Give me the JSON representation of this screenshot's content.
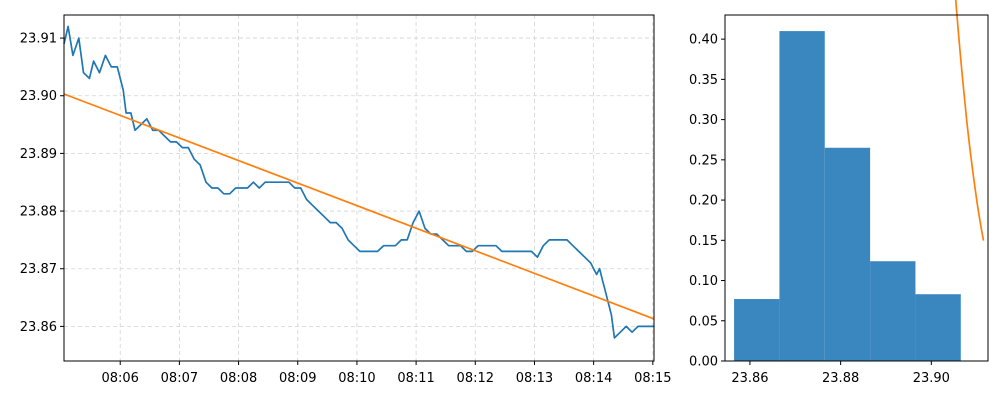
{
  "chart_data": [
    {
      "type": "line",
      "title": "",
      "xlabel": "",
      "ylabel": "",
      "grid": true,
      "x_ticks": [
        "08:06",
        "08:07",
        "08:08",
        "08:09",
        "08:10",
        "08:11",
        "08:12",
        "08:13",
        "08:14",
        "08:15"
      ],
      "x_tick_minutes": [
        6,
        7,
        8,
        9,
        10,
        11,
        12,
        13,
        14,
        15
      ],
      "xlim_minutes": [
        5.05,
        15.02
      ],
      "y_ticks": [
        23.86,
        23.87,
        23.88,
        23.89,
        23.9,
        23.91
      ],
      "ylim": [
        23.854,
        23.914
      ],
      "series": [
        {
          "kind": "price",
          "color": "#1f77b4",
          "points": [
            [
              5.05,
              23.909
            ],
            [
              5.12,
              23.912
            ],
            [
              5.2,
              23.907
            ],
            [
              5.3,
              23.91
            ],
            [
              5.38,
              23.904
            ],
            [
              5.48,
              23.903
            ],
            [
              5.55,
              23.906
            ],
            [
              5.65,
              23.904
            ],
            [
              5.75,
              23.907
            ],
            [
              5.85,
              23.905
            ],
            [
              5.95,
              23.905
            ],
            [
              6.05,
              23.901
            ],
            [
              6.1,
              23.897
            ],
            [
              6.18,
              23.897
            ],
            [
              6.25,
              23.894
            ],
            [
              6.35,
              23.895
            ],
            [
              6.45,
              23.896
            ],
            [
              6.55,
              23.894
            ],
            [
              6.65,
              23.894
            ],
            [
              6.75,
              23.893
            ],
            [
              6.85,
              23.892
            ],
            [
              6.95,
              23.892
            ],
            [
              7.05,
              23.891
            ],
            [
              7.15,
              23.891
            ],
            [
              7.25,
              23.889
            ],
            [
              7.35,
              23.888
            ],
            [
              7.45,
              23.885
            ],
            [
              7.55,
              23.884
            ],
            [
              7.65,
              23.884
            ],
            [
              7.75,
              23.883
            ],
            [
              7.85,
              23.883
            ],
            [
              7.95,
              23.884
            ],
            [
              8.05,
              23.884
            ],
            [
              8.15,
              23.884
            ],
            [
              8.25,
              23.885
            ],
            [
              8.35,
              23.884
            ],
            [
              8.45,
              23.885
            ],
            [
              8.55,
              23.885
            ],
            [
              8.65,
              23.885
            ],
            [
              8.75,
              23.885
            ],
            [
              8.85,
              23.885
            ],
            [
              8.95,
              23.884
            ],
            [
              9.05,
              23.884
            ],
            [
              9.15,
              23.882
            ],
            [
              9.25,
              23.881
            ],
            [
              9.35,
              23.88
            ],
            [
              9.45,
              23.879
            ],
            [
              9.55,
              23.878
            ],
            [
              9.65,
              23.878
            ],
            [
              9.75,
              23.877
            ],
            [
              9.85,
              23.875
            ],
            [
              9.95,
              23.874
            ],
            [
              10.05,
              23.873
            ],
            [
              10.15,
              23.873
            ],
            [
              10.25,
              23.873
            ],
            [
              10.35,
              23.873
            ],
            [
              10.45,
              23.874
            ],
            [
              10.55,
              23.874
            ],
            [
              10.65,
              23.874
            ],
            [
              10.75,
              23.875
            ],
            [
              10.85,
              23.875
            ],
            [
              10.95,
              23.878
            ],
            [
              11.05,
              23.88
            ],
            [
              11.15,
              23.877
            ],
            [
              11.25,
              23.876
            ],
            [
              11.35,
              23.876
            ],
            [
              11.45,
              23.875
            ],
            [
              11.55,
              23.874
            ],
            [
              11.65,
              23.874
            ],
            [
              11.75,
              23.874
            ],
            [
              11.85,
              23.873
            ],
            [
              11.95,
              23.873
            ],
            [
              12.05,
              23.874
            ],
            [
              12.15,
              23.874
            ],
            [
              12.25,
              23.874
            ],
            [
              12.35,
              23.874
            ],
            [
              12.45,
              23.873
            ],
            [
              12.55,
              23.873
            ],
            [
              12.65,
              23.873
            ],
            [
              12.75,
              23.873
            ],
            [
              12.85,
              23.873
            ],
            [
              12.95,
              23.873
            ],
            [
              13.05,
              23.872
            ],
            [
              13.15,
              23.874
            ],
            [
              13.25,
              23.875
            ],
            [
              13.35,
              23.875
            ],
            [
              13.45,
              23.875
            ],
            [
              13.55,
              23.875
            ],
            [
              13.65,
              23.874
            ],
            [
              13.75,
              23.873
            ],
            [
              13.85,
              23.872
            ],
            [
              13.95,
              23.871
            ],
            [
              14.05,
              23.869
            ],
            [
              14.1,
              23.87
            ],
            [
              14.15,
              23.868
            ],
            [
              14.2,
              23.866
            ],
            [
              14.3,
              23.862
            ],
            [
              14.35,
              23.858
            ],
            [
              14.45,
              23.859
            ],
            [
              14.55,
              23.86
            ],
            [
              14.65,
              23.859
            ],
            [
              14.75,
              23.86
            ],
            [
              14.85,
              23.86
            ],
            [
              14.95,
              23.86
            ],
            [
              15.02,
              23.86
            ]
          ]
        },
        {
          "kind": "trend",
          "color": "#ff7f0e",
          "points": [
            [
              5.05,
              23.9003
            ],
            [
              15.02,
              23.8613
            ]
          ]
        }
      ]
    },
    {
      "type": "bar",
      "title": "",
      "xlabel": "",
      "ylabel": "",
      "grid": false,
      "x_ticks": [
        "23.86",
        "23.88",
        "23.90"
      ],
      "x_tick_values": [
        23.86,
        23.88,
        23.9
      ],
      "y_ticks": [
        "0.00",
        "0.05",
        "0.10",
        "0.15",
        "0.20",
        "0.25",
        "0.30",
        "0.35",
        "0.40"
      ],
      "y_tick_values": [
        0.0,
        0.05,
        0.1,
        0.15,
        0.2,
        0.25,
        0.3,
        0.35,
        0.4
      ],
      "xlim": [
        23.8545,
        23.9125
      ],
      "ylim": [
        0.0,
        0.43
      ],
      "bin_edges": [
        23.8565,
        23.8665,
        23.8765,
        23.8865,
        23.8965,
        23.9065
      ],
      "values": [
        0.077,
        0.41,
        0.265,
        0.124,
        0.083
      ],
      "bar_color": "#3a87c0",
      "curve": {
        "kind": "normal_pdf",
        "color": "#ff7f0e",
        "mean": 23.8808,
        "std": 0.0124,
        "scale": 0.0997,
        "x_range": [
          23.8565,
          23.9115
        ]
      }
    }
  ]
}
